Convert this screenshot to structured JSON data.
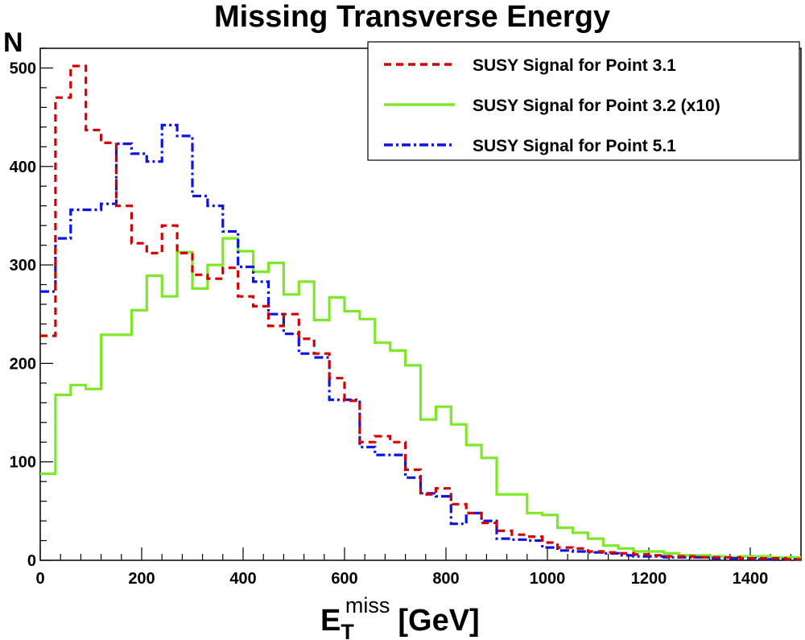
{
  "chart_data": {
    "type": "histogram",
    "title": "Missing Transverse Energy",
    "ylabel": "N",
    "xlabel": {
      "main": "E",
      "subscript": "T",
      "superscript": "miss",
      "unit": "[GeV]"
    },
    "xlim": [
      0,
      1500
    ],
    "ylim": [
      0,
      520
    ],
    "bin_width": 30,
    "x_ticks": [
      0,
      200,
      400,
      600,
      800,
      1000,
      1200,
      1400
    ],
    "y_ticks": [
      0,
      100,
      200,
      300,
      400,
      500
    ],
    "x_tick_labels": [
      "0",
      "200",
      "400",
      "600",
      "800",
      "1000",
      "1200",
      "1400"
    ],
    "y_tick_labels": [
      "0",
      "100",
      "200",
      "300",
      "400",
      "500"
    ],
    "legend_position": "top-right",
    "series": [
      {
        "name": "SUSY Signal for Point 3.1",
        "color": "#d40000",
        "style": "dashed",
        "values": [
          228,
          470,
          502,
          437,
          424,
          360,
          322,
          312,
          340,
          312,
          290,
          286,
          297,
          268,
          258,
          238,
          250,
          225,
          210,
          185,
          162,
          120,
          126,
          120,
          92,
          67,
          73,
          57,
          48,
          38,
          30,
          26,
          24,
          18,
          13,
          12,
          9,
          8,
          7,
          6,
          5,
          4,
          4,
          3,
          3,
          3,
          2,
          2,
          2,
          1
        ]
      },
      {
        "name": "SUSY Signal for Point 3.2 (x10)",
        "color": "#7de825",
        "style": "solid",
        "values": [
          88,
          168,
          178,
          174,
          229,
          229,
          254,
          289,
          268,
          313,
          276,
          300,
          327,
          314,
          293,
          302,
          270,
          283,
          244,
          267,
          253,
          245,
          221,
          213,
          198,
          143,
          156,
          138,
          117,
          104,
          67,
          67,
          48,
          46,
          33,
          28,
          22,
          15,
          12,
          9,
          9,
          7,
          5,
          5,
          4,
          3,
          4,
          4,
          3,
          3
        ]
      },
      {
        "name": "SUSY Signal for Point 5.1",
        "color": "#0a14e6",
        "style": "dashdot",
        "values": [
          273,
          327,
          356,
          356,
          362,
          423,
          413,
          405,
          442,
          431,
          370,
          360,
          334,
          298,
          283,
          250,
          230,
          210,
          206,
          163,
          163,
          115,
          107,
          107,
          84,
          68,
          65,
          37,
          48,
          40,
          22,
          21,
          20,
          13,
          10,
          9,
          8,
          7,
          5,
          4,
          4,
          3,
          3,
          3,
          2,
          2,
          2,
          1,
          1,
          1
        ]
      }
    ]
  }
}
